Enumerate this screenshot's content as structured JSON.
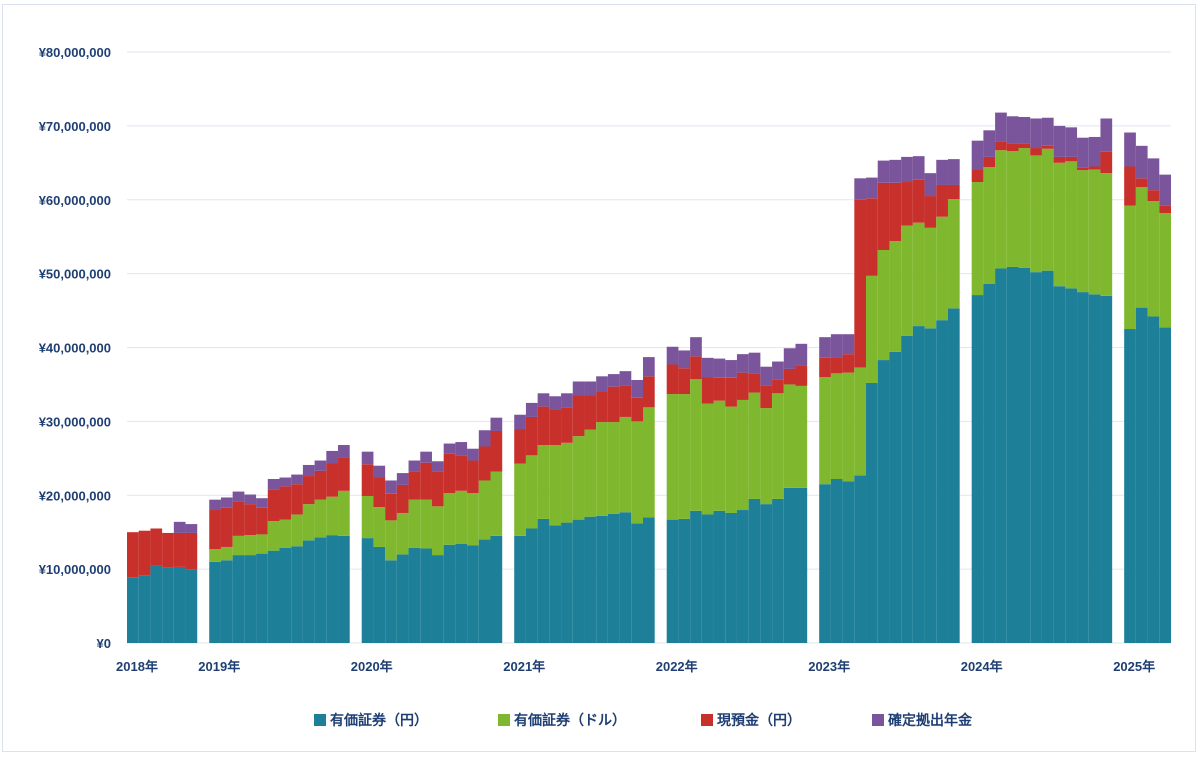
{
  "chart_data": {
    "type": "bar",
    "stacked": true,
    "grid": true,
    "legend_position": "bottom",
    "ylim": [
      0,
      80000000
    ],
    "y_ticks": [
      "¥0",
      "¥10,000,000",
      "¥20,000,000",
      "¥30,000,000",
      "¥40,000,000",
      "¥50,000,000",
      "¥60,000,000",
      "¥70,000,000",
      "¥80,000,000"
    ],
    "y_tick_values": [
      0,
      10000000,
      20000000,
      30000000,
      40000000,
      50000000,
      60000000,
      70000000,
      80000000
    ],
    "x_tick_labels": [
      "2018年",
      "2019年",
      "2020年",
      "2021年",
      "2022年",
      "2023年",
      "2024年",
      "2025年"
    ],
    "series_colors": [
      "#1e7f99",
      "#7fb82e",
      "#c8302c",
      "#7b559c"
    ],
    "series": [
      {
        "name": "有価証券（円）",
        "color": "#1e7f99"
      },
      {
        "name": "有価証券（ドル）",
        "color": "#7fb82e"
      },
      {
        "name": "現預金（円）",
        "color": "#c8302c"
      },
      {
        "name": "確定拠出年金",
        "color": "#7b559c"
      }
    ],
    "years": [
      {
        "label": "2018年",
        "months": [
          {
            "a": 8900000,
            "b": 0,
            "c": 6100000,
            "d": 0
          },
          {
            "a": 9100000,
            "b": 0,
            "c": 6100000,
            "d": 0
          },
          {
            "a": 10500000,
            "b": 0,
            "c": 5000000,
            "d": 0
          },
          {
            "a": 10200000,
            "b": 0,
            "c": 4700000,
            "d": 0
          },
          {
            "a": 10300000,
            "b": 0,
            "c": 4600000,
            "d": 1500000
          },
          {
            "a": 10000000,
            "b": 0,
            "c": 4900000,
            "d": 1200000
          }
        ]
      },
      {
        "label": "2019年",
        "months": [
          {
            "a": 11000000,
            "b": 1700000,
            "c": 5300000,
            "d": 1400000
          },
          {
            "a": 11200000,
            "b": 1800000,
            "c": 5300000,
            "d": 1400000
          },
          {
            "a": 11900000,
            "b": 2600000,
            "c": 4700000,
            "d": 1300000
          },
          {
            "a": 11900000,
            "b": 2700000,
            "c": 4200000,
            "d": 1300000
          },
          {
            "a": 12100000,
            "b": 2600000,
            "c": 3600000,
            "d": 1300000
          },
          {
            "a": 12500000,
            "b": 4000000,
            "c": 4300000,
            "d": 1400000
          },
          {
            "a": 12900000,
            "b": 3800000,
            "c": 4500000,
            "d": 1200000
          },
          {
            "a": 13100000,
            "b": 4300000,
            "c": 4100000,
            "d": 1300000
          },
          {
            "a": 13900000,
            "b": 4900000,
            "c": 3800000,
            "d": 1500000
          },
          {
            "a": 14300000,
            "b": 5100000,
            "c": 3900000,
            "d": 1400000
          },
          {
            "a": 14600000,
            "b": 5200000,
            "c": 4500000,
            "d": 1700000
          },
          {
            "a": 14500000,
            "b": 6100000,
            "c": 4500000,
            "d": 1700000
          }
        ]
      },
      {
        "label": "2020年",
        "months": [
          {
            "a": 14200000,
            "b": 5700000,
            "c": 4300000,
            "d": 1700000
          },
          {
            "a": 13000000,
            "b": 5400000,
            "c": 4000000,
            "d": 1600000
          },
          {
            "a": 11200000,
            "b": 5400000,
            "c": 3600000,
            "d": 1800000
          },
          {
            "a": 12000000,
            "b": 5600000,
            "c": 3800000,
            "d": 1600000
          },
          {
            "a": 12900000,
            "b": 6500000,
            "c": 3800000,
            "d": 1500000
          },
          {
            "a": 12800000,
            "b": 6600000,
            "c": 5000000,
            "d": 1500000
          },
          {
            "a": 11900000,
            "b": 6600000,
            "c": 4700000,
            "d": 1400000
          },
          {
            "a": 13300000,
            "b": 7000000,
            "c": 5300000,
            "d": 1400000
          },
          {
            "a": 13400000,
            "b": 7200000,
            "c": 4800000,
            "d": 1800000
          },
          {
            "a": 13200000,
            "b": 7100000,
            "c": 4400000,
            "d": 1600000
          },
          {
            "a": 14000000,
            "b": 8000000,
            "c": 4600000,
            "d": 2200000
          },
          {
            "a": 14500000,
            "b": 8700000,
            "c": 5500000,
            "d": 1800000
          }
        ]
      },
      {
        "label": "2021年",
        "months": [
          {
            "a": 14500000,
            "b": 9800000,
            "c": 4600000,
            "d": 2000000
          },
          {
            "a": 15500000,
            "b": 9900000,
            "c": 5200000,
            "d": 1900000
          },
          {
            "a": 16800000,
            "b": 10000000,
            "c": 5200000,
            "d": 1800000
          },
          {
            "a": 15900000,
            "b": 10900000,
            "c": 4800000,
            "d": 1800000
          },
          {
            "a": 16300000,
            "b": 10800000,
            "c": 4800000,
            "d": 1900000
          },
          {
            "a": 16700000,
            "b": 11300000,
            "c": 5500000,
            "d": 1900000
          },
          {
            "a": 17100000,
            "b": 11800000,
            "c": 4600000,
            "d": 1900000
          },
          {
            "a": 17200000,
            "b": 12700000,
            "c": 4200000,
            "d": 2000000
          },
          {
            "a": 17500000,
            "b": 12400000,
            "c": 4800000,
            "d": 1700000
          },
          {
            "a": 17700000,
            "b": 12900000,
            "c": 4300000,
            "d": 1900000
          },
          {
            "a": 16200000,
            "b": 13800000,
            "c": 3200000,
            "d": 2400000
          },
          {
            "a": 17000000,
            "b": 14900000,
            "c": 4200000,
            "d": 2600000
          }
        ]
      },
      {
        "label": "2022年",
        "months": [
          {
            "a": 16700000,
            "b": 17000000,
            "c": 4000000,
            "d": 2400000
          },
          {
            "a": 16800000,
            "b": 16900000,
            "c": 3500000,
            "d": 2400000
          },
          {
            "a": 17900000,
            "b": 17800000,
            "c": 3100000,
            "d": 2600000
          },
          {
            "a": 17400000,
            "b": 15000000,
            "c": 3600000,
            "d": 2600000
          },
          {
            "a": 17900000,
            "b": 14900000,
            "c": 3100000,
            "d": 2600000
          },
          {
            "a": 17600000,
            "b": 14400000,
            "c": 3900000,
            "d": 2400000
          },
          {
            "a": 18000000,
            "b": 14900000,
            "c": 3700000,
            "d": 2500000
          },
          {
            "a": 19500000,
            "b": 14400000,
            "c": 2600000,
            "d": 2800000
          },
          {
            "a": 18800000,
            "b": 13000000,
            "c": 3100000,
            "d": 2500000
          },
          {
            "a": 19500000,
            "b": 14300000,
            "c": 1900000,
            "d": 2400000
          },
          {
            "a": 21000000,
            "b": 14000000,
            "c": 2100000,
            "d": 2800000
          },
          {
            "a": 21000000,
            "b": 13800000,
            "c": 2700000,
            "d": 3000000
          }
        ]
      },
      {
        "label": "2023年",
        "months": [
          {
            "a": 21500000,
            "b": 14500000,
            "c": 2600000,
            "d": 2800000
          },
          {
            "a": 22200000,
            "b": 14300000,
            "c": 2200000,
            "d": 3100000
          },
          {
            "a": 21900000,
            "b": 14700000,
            "c": 2500000,
            "d": 2700000
          },
          {
            "a": 22700000,
            "b": 14600000,
            "c": 22700000,
            "d": 2900000
          },
          {
            "a": 35200000,
            "b": 14500000,
            "c": 10500000,
            "d": 2800000
          },
          {
            "a": 38300000,
            "b": 14900000,
            "c": 9100000,
            "d": 3000000
          },
          {
            "a": 39400000,
            "b": 15000000,
            "c": 7900000,
            "d": 3100000
          },
          {
            "a": 41600000,
            "b": 14900000,
            "c": 5900000,
            "d": 3400000
          },
          {
            "a": 42900000,
            "b": 14000000,
            "c": 5800000,
            "d": 3200000
          },
          {
            "a": 42600000,
            "b": 13600000,
            "c": 4300000,
            "d": 3100000
          },
          {
            "a": 43700000,
            "b": 14000000,
            "c": 4300000,
            "d": 3400000
          },
          {
            "a": 45300000,
            "b": 14800000,
            "c": 1900000,
            "d": 3500000
          }
        ]
      },
      {
        "label": "2024年",
        "months": [
          {
            "a": 47100000,
            "b": 15300000,
            "c": 1700000,
            "d": 3900000
          },
          {
            "a": 48600000,
            "b": 15800000,
            "c": 1400000,
            "d": 3600000
          },
          {
            "a": 50700000,
            "b": 16000000,
            "c": 1200000,
            "d": 3900000
          },
          {
            "a": 50900000,
            "b": 15700000,
            "c": 1000000,
            "d": 3700000
          },
          {
            "a": 50800000,
            "b": 16200000,
            "c": 600000,
            "d": 3600000
          },
          {
            "a": 50200000,
            "b": 15800000,
            "c": 1000000,
            "d": 4000000
          },
          {
            "a": 50400000,
            "b": 16500000,
            "c": 400000,
            "d": 3800000
          },
          {
            "a": 48300000,
            "b": 16700000,
            "c": 800000,
            "d": 4200000
          },
          {
            "a": 48000000,
            "b": 17200000,
            "c": 600000,
            "d": 4000000
          },
          {
            "a": 47500000,
            "b": 16500000,
            "c": 400000,
            "d": 4000000
          },
          {
            "a": 47200000,
            "b": 16900000,
            "c": 400000,
            "d": 4000000
          },
          {
            "a": 47000000,
            "b": 16600000,
            "c": 2900000,
            "d": 4500000
          }
        ]
      },
      {
        "label": "2025年",
        "months": [
          {
            "a": 42500000,
            "b": 16700000,
            "c": 5300000,
            "d": 4600000
          },
          {
            "a": 45400000,
            "b": 16300000,
            "c": 1200000,
            "d": 4400000
          },
          {
            "a": 44200000,
            "b": 15600000,
            "c": 1500000,
            "d": 4300000
          },
          {
            "a": 42700000,
            "b": 15500000,
            "c": 1000000,
            "d": 4200000
          }
        ]
      }
    ]
  }
}
